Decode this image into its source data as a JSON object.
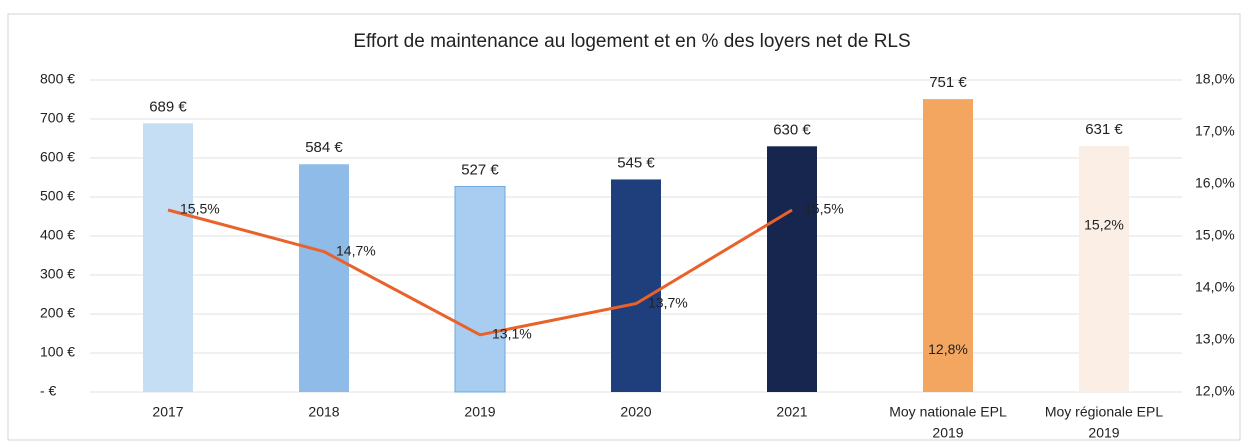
{
  "chart_data": {
    "type": "bar_line",
    "title": "Effort de maintenance au logement et en % des loyers net de RLS",
    "categories": [
      [
        "2017"
      ],
      [
        "2018"
      ],
      [
        "2019"
      ],
      [
        "2020"
      ],
      [
        "2021"
      ],
      [
        "Moy nationale EPL",
        "2019"
      ],
      [
        "Moy régionale EPL",
        "2019"
      ]
    ],
    "values": [
      689,
      584,
      527,
      545,
      630,
      751,
      631
    ],
    "value_labels": [
      "689 €",
      "584 €",
      "527 €",
      "545 €",
      "630 €",
      "751 €",
      "631 €"
    ],
    "colors": [
      "#c6def4",
      "#8fbbe8",
      "#a9cdf1",
      "#1f3e7c",
      "#16264e",
      "#f3a660",
      "#fbeee4"
    ],
    "series": [
      {
        "color": "#e8622a",
        "axis": "y2",
        "line": true,
        "values": [
          15.5,
          14.7,
          13.1,
          13.7,
          15.5,
          null,
          null
        ],
        "value_labels": [
          "15,5%",
          "14,7%",
          "13,1%",
          "13,7%",
          "15,5%",
          null,
          null
        ]
      },
      {
        "color": "#e8622a",
        "axis": "y2",
        "line": false,
        "values": [
          null,
          null,
          null,
          null,
          null,
          12.8,
          15.2
        ],
        "value_labels": [
          null,
          null,
          null,
          null,
          null,
          "12,8%",
          "15,2%"
        ]
      }
    ],
    "ylim": [
      0,
      800
    ],
    "yticks": [
      {
        "value": 0,
        "label": "- €"
      },
      {
        "value": 100,
        "label": "100 €"
      },
      {
        "value": 200,
        "label": "200 €"
      },
      {
        "value": 300,
        "label": "300 €"
      },
      {
        "value": 400,
        "label": "400 €"
      },
      {
        "value": 500,
        "label": "500 €"
      },
      {
        "value": 600,
        "label": "600 €"
      },
      {
        "value": 700,
        "label": "700 €"
      },
      {
        "value": 800,
        "label": "800 €"
      }
    ],
    "y2lim": [
      12,
      18
    ],
    "y2ticks": [
      {
        "value": 12,
        "label": "12,0%"
      },
      {
        "value": 13,
        "label": "13,0%"
      },
      {
        "value": 14,
        "label": "14,0%"
      },
      {
        "value": 15,
        "label": "15,0%"
      },
      {
        "value": 16,
        "label": "16,0%"
      },
      {
        "value": 17,
        "label": "17,0%"
      },
      {
        "value": 18,
        "label": "18,0%"
      }
    ],
    "grid": true
  }
}
